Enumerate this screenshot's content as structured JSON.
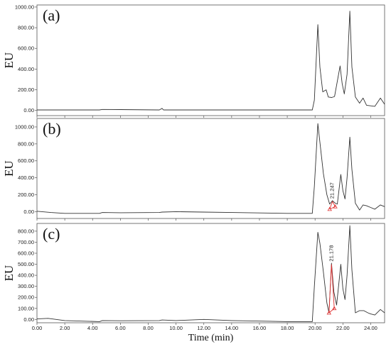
{
  "chart_data": {
    "type": "line",
    "xlabel": "Time (min)",
    "xlim": [
      0,
      25
    ],
    "xticks": [
      "0.00",
      "2.00",
      "4.00",
      "6.00",
      "8.00",
      "10.00",
      "12.00",
      "14.00",
      "16.00",
      "18.00",
      "20.00",
      "22.00",
      "24.00"
    ],
    "xtick_values": [
      0,
      2,
      4,
      6,
      8,
      10,
      12,
      14,
      16,
      18,
      20,
      22,
      24
    ],
    "line_color": "#333333",
    "highlight_color": "#e03030",
    "panels": [
      {
        "label": "(a)",
        "ylabel": "EU",
        "ylim": [
          -50,
          1020
        ],
        "yticks": [
          "0.00",
          "200.00",
          "400.00",
          "600.00",
          "800.00",
          "1000.00"
        ],
        "ytick_values": [
          0,
          200,
          400,
          600,
          800,
          1000
        ],
        "trace": [
          [
            0,
            5
          ],
          [
            4.5,
            5
          ],
          [
            4.7,
            10
          ],
          [
            6,
            8
          ],
          [
            8.8,
            5
          ],
          [
            9,
            20
          ],
          [
            9.1,
            5
          ],
          [
            19.8,
            5
          ],
          [
            19.95,
            100
          ],
          [
            20.2,
            830
          ],
          [
            20.35,
            420
          ],
          [
            20.55,
            180
          ],
          [
            20.8,
            200
          ],
          [
            20.95,
            130
          ],
          [
            21.2,
            125
          ],
          [
            21.4,
            135
          ],
          [
            21.8,
            430
          ],
          [
            21.95,
            260
          ],
          [
            22.1,
            160
          ],
          [
            22.3,
            350
          ],
          [
            22.5,
            960
          ],
          [
            22.65,
            420
          ],
          [
            22.9,
            130
          ],
          [
            23.2,
            70
          ],
          [
            23.45,
            120
          ],
          [
            23.7,
            50
          ],
          [
            24.3,
            40
          ],
          [
            24.7,
            120
          ],
          [
            25,
            60
          ]
        ]
      },
      {
        "label": "(b)",
        "ylabel": "EU",
        "ylim": [
          -80,
          1100
        ],
        "yticks": [
          "0.00",
          "200.00",
          "400.00",
          "600.00",
          "800.00",
          "1000.00"
        ],
        "ytick_values": [
          0,
          200,
          400,
          600,
          800,
          1000
        ],
        "annotation": "21.247",
        "trace": [
          [
            0,
            5
          ],
          [
            1,
            -10
          ],
          [
            2,
            -20
          ],
          [
            4.5,
            -20
          ],
          [
            4.7,
            -10
          ],
          [
            6,
            -12
          ],
          [
            8.8,
            -10
          ],
          [
            9,
            -5
          ],
          [
            10,
            0
          ],
          [
            12,
            -5
          ],
          [
            14,
            -10
          ],
          [
            18,
            -20
          ],
          [
            19.8,
            -20
          ],
          [
            19.95,
            300
          ],
          [
            20.2,
            1040
          ],
          [
            20.35,
            820
          ],
          [
            20.6,
            450
          ],
          [
            20.85,
            200
          ],
          [
            21.05,
            90
          ],
          [
            21.25,
            130
          ],
          [
            21.45,
            100
          ],
          [
            21.6,
            90
          ],
          [
            21.85,
            440
          ],
          [
            22.0,
            250
          ],
          [
            22.15,
            150
          ],
          [
            22.3,
            400
          ],
          [
            22.5,
            880
          ],
          [
            22.65,
            500
          ],
          [
            22.9,
            100
          ],
          [
            23.2,
            20
          ],
          [
            23.45,
            80
          ],
          [
            23.7,
            70
          ],
          [
            24,
            50
          ],
          [
            24.3,
            30
          ],
          [
            24.7,
            80
          ],
          [
            25,
            60
          ]
        ],
        "highlight": [
          [
            21.05,
            30
          ],
          [
            21.25,
            120
          ],
          [
            21.45,
            60
          ],
          [
            21.05,
            30
          ]
        ]
      },
      {
        "label": "(c)",
        "ylabel": "EU",
        "ylim": [
          -30,
          870
        ],
        "yticks": [
          "0.00",
          "100.00",
          "200.00",
          "300.00",
          "400.00",
          "500.00",
          "600.00",
          "700.00",
          "800.00"
        ],
        "ytick_values": [
          0,
          100,
          200,
          300,
          400,
          500,
          600,
          700,
          800
        ],
        "annotation": "21.178",
        "trace": [
          [
            0,
            5
          ],
          [
            0.8,
            10
          ],
          [
            2,
            -10
          ],
          [
            4.5,
            -20
          ],
          [
            4.7,
            -10
          ],
          [
            6,
            -12
          ],
          [
            8.8,
            -10
          ],
          [
            9,
            -5
          ],
          [
            10,
            -10
          ],
          [
            12,
            0
          ],
          [
            14,
            -10
          ],
          [
            18,
            -20
          ],
          [
            19.8,
            -20
          ],
          [
            19.95,
            300
          ],
          [
            20.2,
            790
          ],
          [
            20.35,
            690
          ],
          [
            20.6,
            430
          ],
          [
            20.85,
            150
          ],
          [
            21.0,
            60
          ],
          [
            21.18,
            510
          ],
          [
            21.35,
            250
          ],
          [
            21.55,
            130
          ],
          [
            21.85,
            500
          ],
          [
            22.0,
            280
          ],
          [
            22.15,
            180
          ],
          [
            22.3,
            400
          ],
          [
            22.5,
            850
          ],
          [
            22.65,
            450
          ],
          [
            22.9,
            60
          ],
          [
            23.2,
            80
          ],
          [
            23.5,
            80
          ],
          [
            23.8,
            60
          ],
          [
            24,
            50
          ],
          [
            24.3,
            40
          ],
          [
            24.7,
            90
          ],
          [
            25,
            60
          ]
        ],
        "highlight": [
          [
            21.0,
            60
          ],
          [
            21.18,
            500
          ],
          [
            21.38,
            100
          ],
          [
            21.0,
            60
          ]
        ]
      }
    ]
  }
}
